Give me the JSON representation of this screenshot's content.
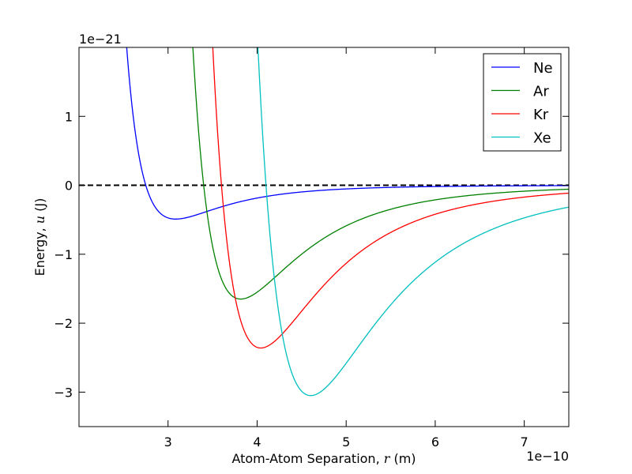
{
  "chart_data": {
    "type": "line",
    "x_offset_label": "1e−10",
    "y_offset_label": "1e−21",
    "xlabel_main": "Atom-Atom Separation, ",
    "xlabel_var": "r",
    "xlabel_unit": " (m)",
    "ylabel_main": "Energy, ",
    "ylabel_var": "u",
    "ylabel_unit": " (J)",
    "xlim": [
      2.0,
      7.5
    ],
    "ylim": [
      -3.5,
      2.0
    ],
    "x_scale_exponent": -10,
    "y_scale_exponent": -21,
    "xticks": [
      3,
      4,
      5,
      6,
      7
    ],
    "xtick_labels": [
      "3",
      "4",
      "5",
      "6",
      "7"
    ],
    "yticks": [
      1,
      0,
      -1,
      -2,
      -3
    ],
    "ytick_labels": [
      "1",
      "0",
      "−1",
      "−2",
      "−3"
    ],
    "grid": false,
    "legend_position": "top-right",
    "reference_line": {
      "y": 0,
      "style": "dashed",
      "color": "#000000"
    },
    "series": [
      {
        "name": "Ne",
        "color": "#0000ff",
        "sigma": 2.75,
        "epsilon": 0.49
      },
      {
        "name": "Ar",
        "color": "#008000",
        "sigma": 3.4,
        "epsilon": 1.65
      },
      {
        "name": "Kr",
        "color": "#ff0000",
        "sigma": 3.6,
        "epsilon": 2.36
      },
      {
        "name": "Xe",
        "color": "#00bfbf",
        "sigma": 4.1,
        "epsilon": 3.05
      }
    ]
  }
}
